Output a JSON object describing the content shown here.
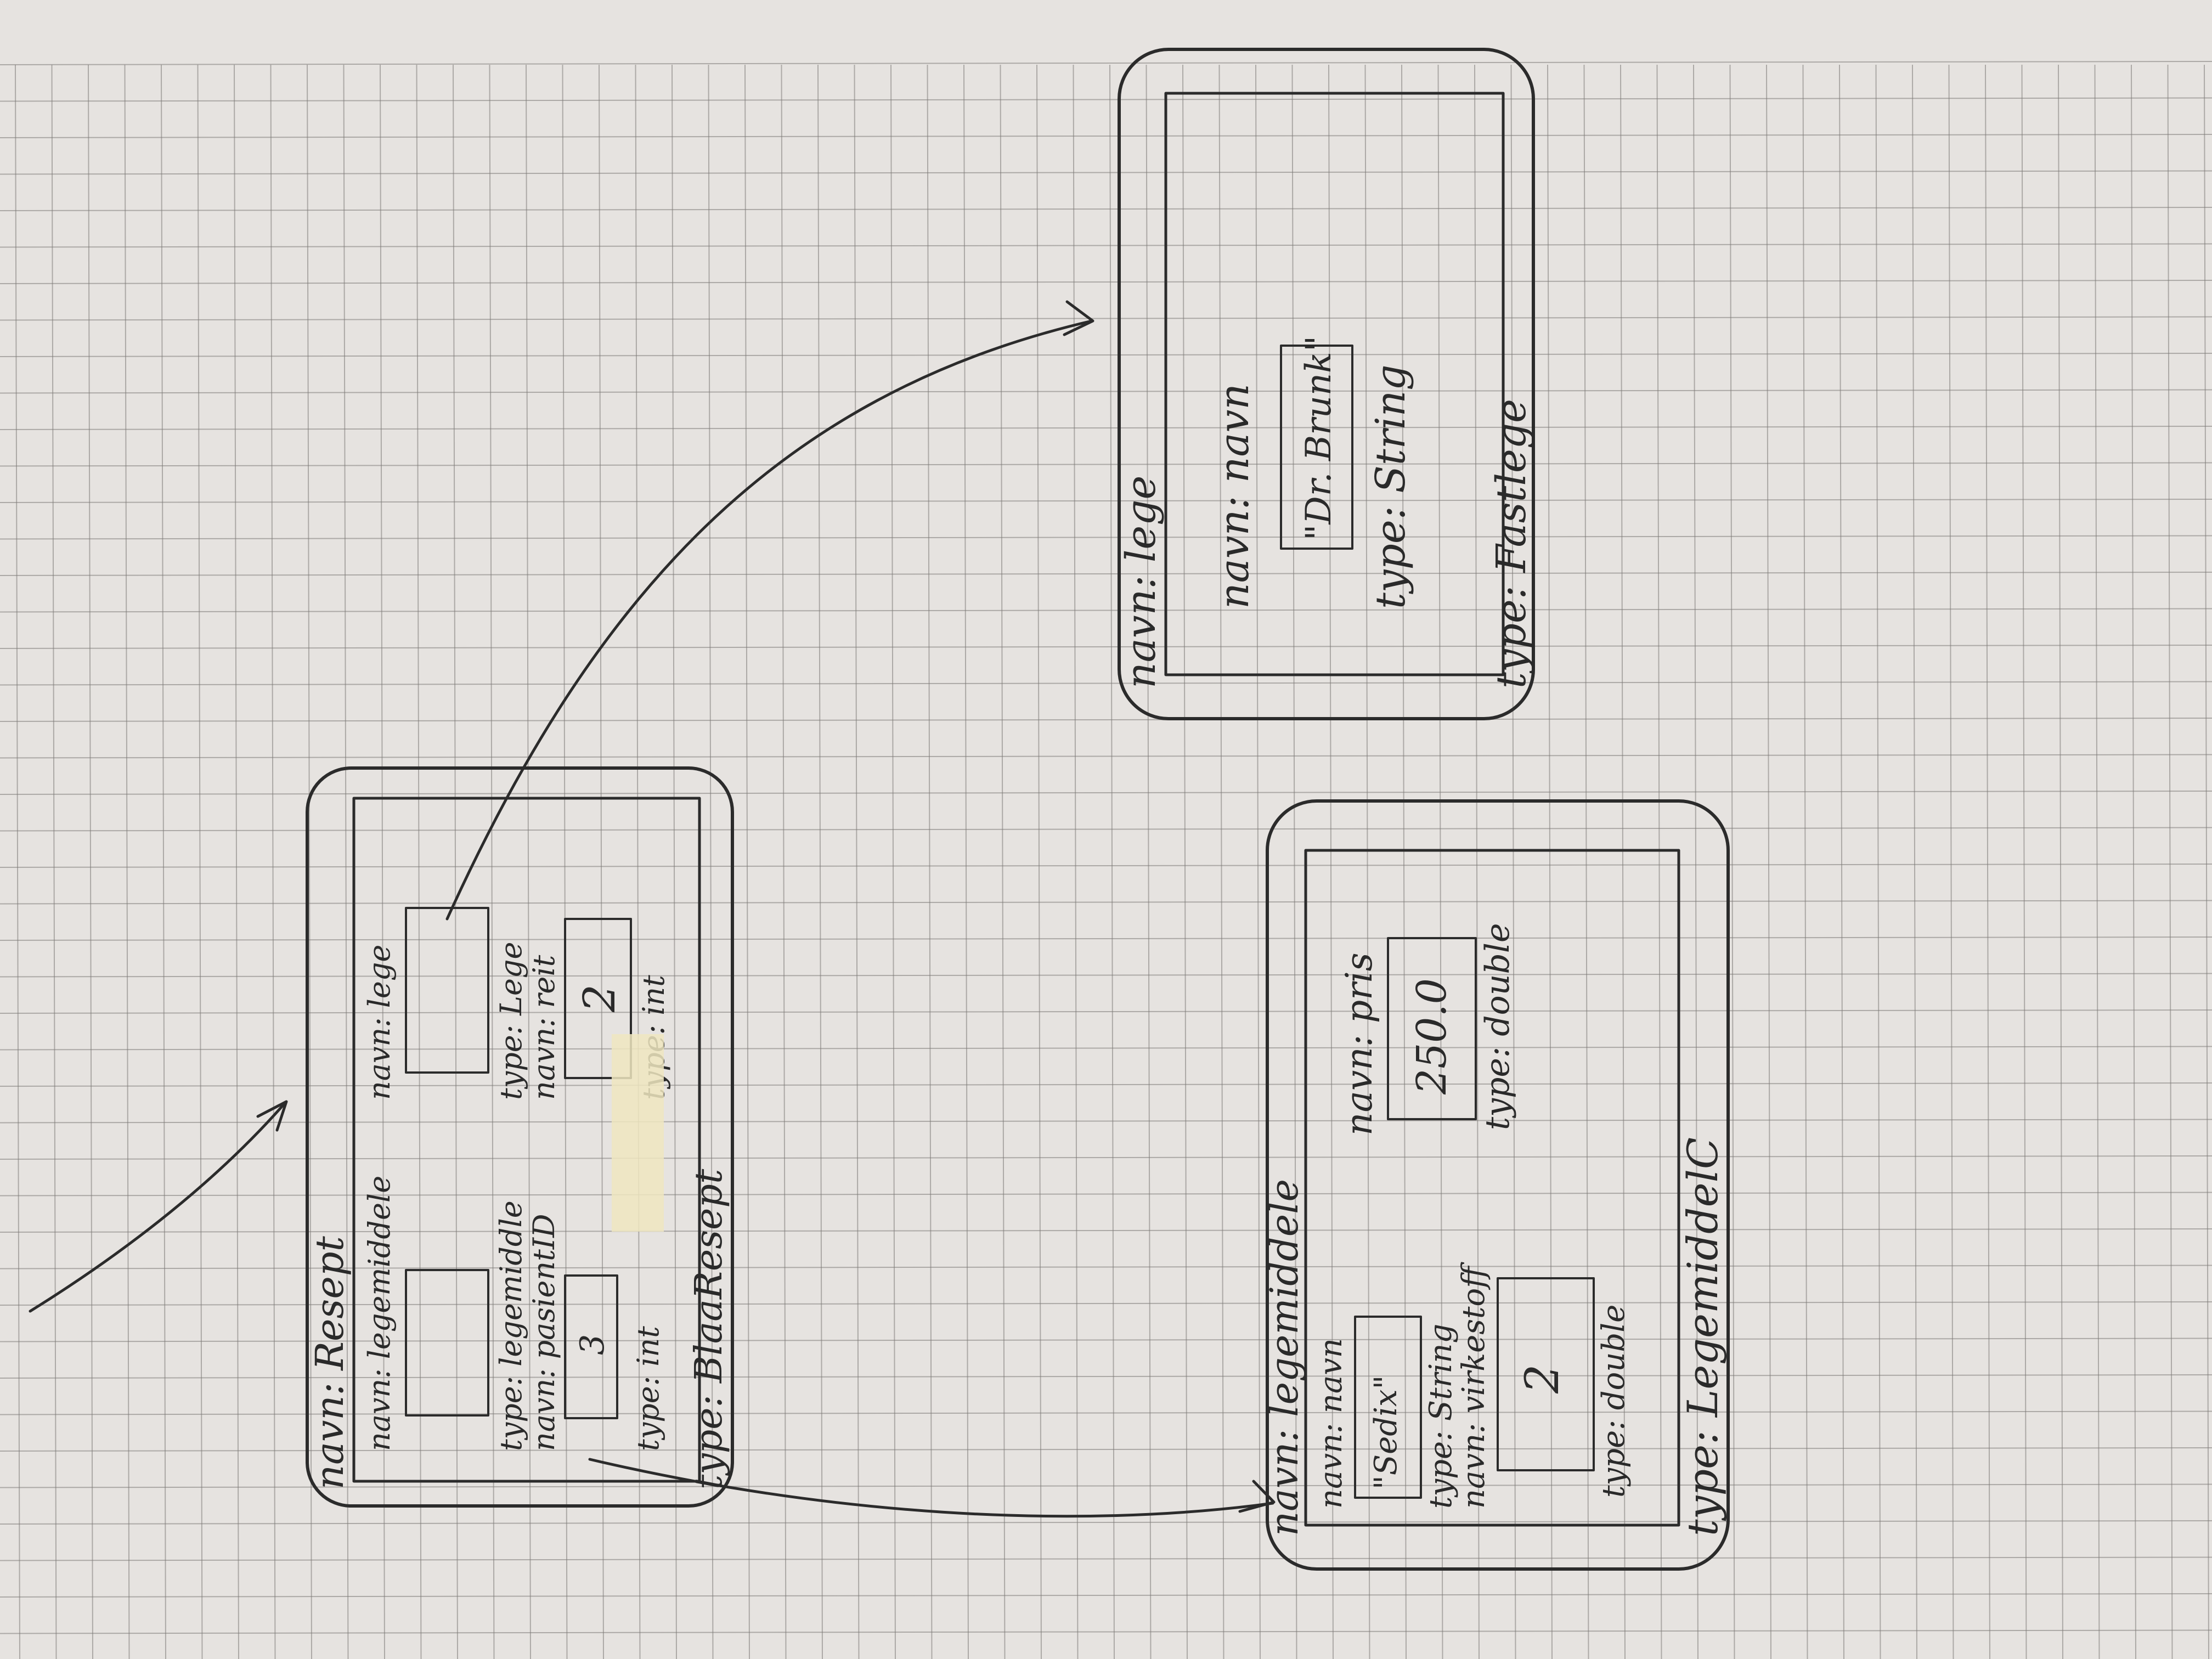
{
  "paper": {
    "background": "#e6e3e0",
    "grid_color": "#7d7a78",
    "ink_color": "#2b2b2b",
    "tape_color": "#efe6bf"
  },
  "resept": {
    "navn_label": "navn: Resept",
    "object_fields": [
      {
        "navn": "navn: legemiddele",
        "type": "type: legemiddle"
      },
      {
        "navn": "navn: lege",
        "type": "type: Lege"
      }
    ],
    "int_fields": [
      {
        "navn": "navn: pasientID",
        "value": "3",
        "type": "type: int"
      },
      {
        "navn": "navn: reit",
        "value": "2",
        "type": "type: int"
      }
    ],
    "type_label": "type: BlaaResept"
  },
  "lege": {
    "navn_label": "navn: lege",
    "field_navn": "navn: navn",
    "field_value": "\"Dr. Brunk\"",
    "field_type": "type: String",
    "type_label": "type: Fastlege"
  },
  "legemiddel": {
    "navn_label": "navn: legemiddele",
    "fields": [
      {
        "navn": "navn: navn",
        "value": "\"Sedix\"",
        "type": "type: String"
      },
      {
        "navn": "navn: virkestoff",
        "value": "2",
        "type": "type: double"
      },
      {
        "navn": "navn: pris",
        "value": "250.0",
        "type": "type: double"
      }
    ],
    "type_label": "type: LegemiddelC"
  }
}
